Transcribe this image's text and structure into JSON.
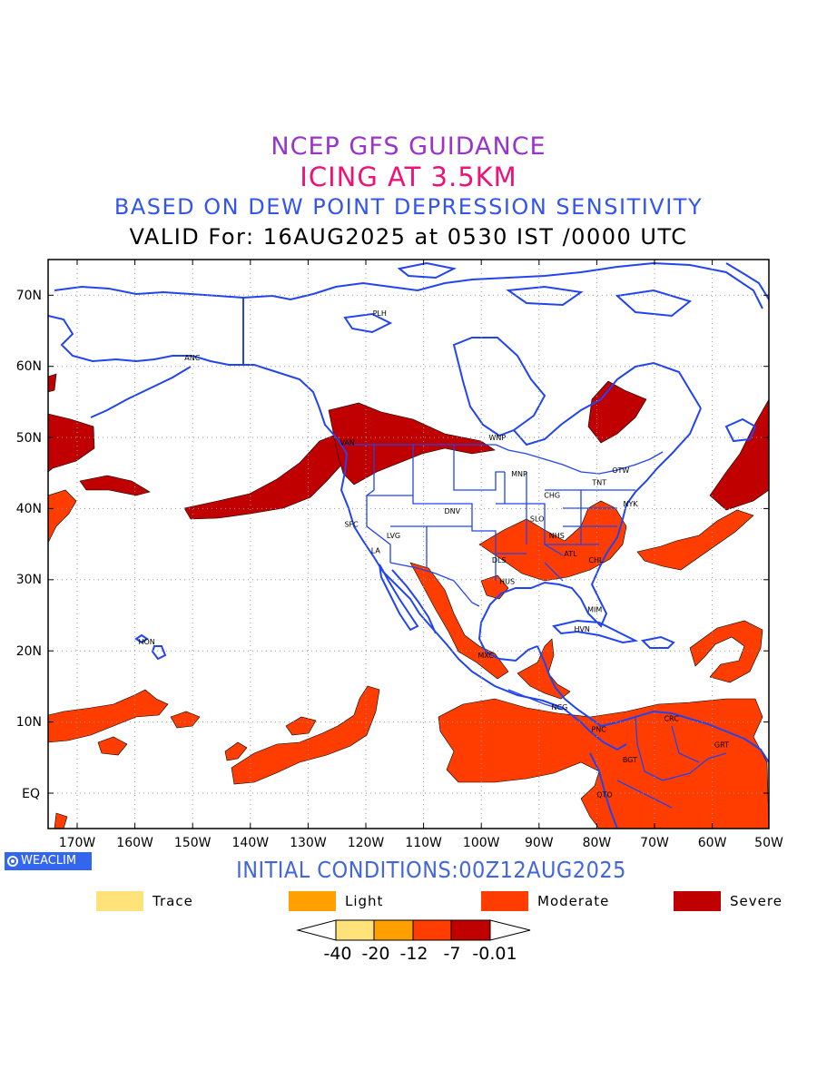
{
  "header": {
    "line1": "NCEP GFS GUIDANCE",
    "line2": "ICING AT 3.5KM",
    "line3": "BASED ON DEW POINT DEPRESSION SENSITIVITY",
    "line4": "VALID For: 16AUG2025 at 0530 IST /0000 UTC"
  },
  "map": {
    "lat_labels": [
      "70N",
      "60N",
      "50N",
      "40N",
      "30N",
      "20N",
      "10N",
      "EQ"
    ],
    "lon_labels": [
      "170W",
      "160W",
      "150W",
      "140W",
      "130W",
      "120W",
      "110W",
      "100W",
      "90W",
      "80W",
      "70W",
      "60W",
      "50W"
    ],
    "stations": [
      {
        "code": "ANC",
        "lon": -150.0,
        "lat": 61.2
      },
      {
        "code": "PLH",
        "lon": -117.5,
        "lat": 67.5
      },
      {
        "code": "VAN",
        "lon": -123.1,
        "lat": 49.3
      },
      {
        "code": "WNP",
        "lon": -97.1,
        "lat": 50.0
      },
      {
        "code": "MNP",
        "lon": -93.3,
        "lat": 44.9
      },
      {
        "code": "OTW",
        "lon": -75.7,
        "lat": 45.4
      },
      {
        "code": "TNT",
        "lon": -79.4,
        "lat": 43.7
      },
      {
        "code": "NYK",
        "lon": -74.0,
        "lat": 40.7
      },
      {
        "code": "CHG",
        "lon": -87.6,
        "lat": 41.9
      },
      {
        "code": "SLO",
        "lon": -90.2,
        "lat": 38.6
      },
      {
        "code": "DNV",
        "lon": -104.9,
        "lat": 39.7
      },
      {
        "code": "SFC",
        "lon": -122.4,
        "lat": 37.8
      },
      {
        "code": "LVG",
        "lon": -115.1,
        "lat": 36.2
      },
      {
        "code": "LA",
        "lon": -118.2,
        "lat": 34.1
      },
      {
        "code": "NHS",
        "lon": -86.8,
        "lat": 36.2
      },
      {
        "code": "ATL",
        "lon": -84.4,
        "lat": 33.7
      },
      {
        "code": "DLS",
        "lon": -96.8,
        "lat": 32.8
      },
      {
        "code": "CHL",
        "lon": -80.0,
        "lat": 32.8
      },
      {
        "code": "HUS",
        "lon": -95.4,
        "lat": 29.8
      },
      {
        "code": "MIM",
        "lon": -80.2,
        "lat": 25.8
      },
      {
        "code": "HVN",
        "lon": -82.4,
        "lat": 23.1
      },
      {
        "code": "MXC",
        "lon": -99.1,
        "lat": 19.4
      },
      {
        "code": "HON",
        "lon": -157.9,
        "lat": 21.3
      },
      {
        "code": "NCG",
        "lon": -86.3,
        "lat": 12.1
      },
      {
        "code": "PNC",
        "lon": -79.5,
        "lat": 9.0
      },
      {
        "code": "CRC",
        "lon": -66.9,
        "lat": 10.5
      },
      {
        "code": "BGT",
        "lon": -74.1,
        "lat": 4.7
      },
      {
        "code": "GRT",
        "lon": -58.2,
        "lat": 6.8
      },
      {
        "code": "QTO",
        "lon": -78.5,
        "lat": -0.2
      }
    ]
  },
  "footer": {
    "badge": "WEACLIM",
    "initial_conditions": "INITIAL CONDITIONS:00Z12AUG2025"
  },
  "legend": {
    "items": [
      {
        "label": "Trace",
        "color": "#ffe27a"
      },
      {
        "label": "Light",
        "color": "#ffa000"
      },
      {
        "label": "Moderate",
        "color": "#ff3d00"
      },
      {
        "label": "Severe",
        "color": "#c00000"
      }
    ],
    "colorbar_ticks": [
      "-40",
      "-20",
      "-12",
      "-7",
      "-0.01"
    ]
  },
  "colors": {
    "coastline": "#2244ee",
    "moderate": "#ff3d00",
    "severe": "#c00000"
  }
}
